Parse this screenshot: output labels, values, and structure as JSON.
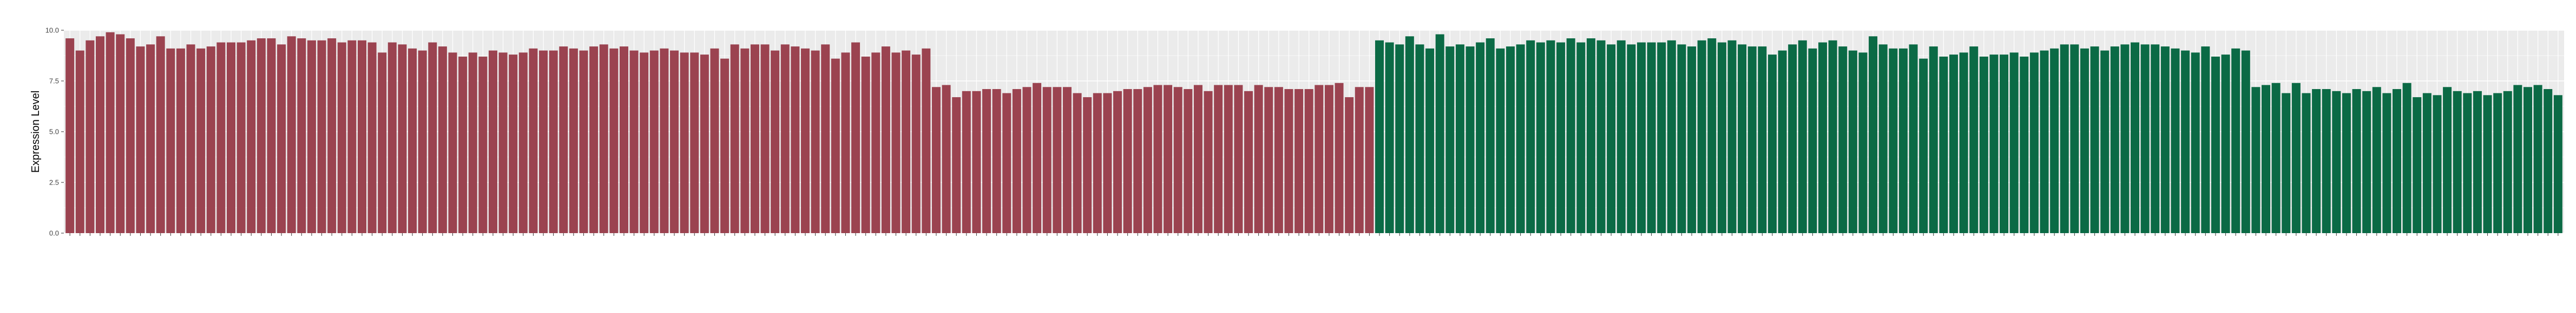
{
  "chart_data": {
    "type": "bar",
    "ylabel": "Expression Level",
    "xlabel": "",
    "ylim": [
      0,
      10
    ],
    "yticks": [
      "0.0",
      "2.5",
      "5.0",
      "7.5",
      "10.0"
    ],
    "grid": true,
    "legend": "none",
    "colors": {
      "group1": "#9b4350",
      "group2": "#0b6a45",
      "panel": "#ebebeb",
      "gridline": "#ffffff"
    },
    "groups": [
      {
        "color_key": "group1",
        "values": [
          9.6,
          9.0,
          9.5,
          9.7,
          9.9,
          9.8,
          9.6,
          9.2,
          9.3,
          9.7,
          9.1,
          9.1,
          9.3,
          9.1,
          9.2,
          9.4,
          9.4,
          9.4,
          9.5,
          9.6,
          9.6,
          9.3,
          9.7,
          9.6,
          9.5,
          9.5,
          9.6,
          9.4,
          9.5,
          9.5,
          9.4,
          8.9,
          9.4,
          9.3,
          9.1,
          9.0,
          9.4,
          9.2,
          8.9,
          8.7,
          8.9,
          8.7,
          9.0,
          8.9,
          8.8,
          8.9,
          9.1,
          9.0,
          9.0,
          9.2,
          9.1,
          9.0,
          9.2,
          9.3,
          9.1,
          9.2,
          9.0,
          8.9,
          9.0,
          9.1,
          9.0,
          8.9,
          8.9,
          8.8,
          9.1,
          8.6,
          9.3,
          9.1,
          9.3,
          9.3,
          9.0,
          9.3,
          9.2,
          9.1,
          9.0,
          9.3,
          8.6,
          8.9,
          9.4,
          8.7,
          8.9,
          9.2,
          8.9,
          9.0,
          8.8,
          9.1,
          7.2,
          7.3,
          6.7,
          7.0,
          7.0,
          7.1,
          7.1,
          6.9,
          7.1,
          7.2,
          7.4,
          7.2,
          7.2,
          7.2,
          6.9,
          6.7,
          6.9,
          6.9,
          7.0,
          7.1,
          7.1,
          7.2,
          7.3,
          7.3,
          7.2,
          7.1,
          7.3,
          7.0,
          7.3,
          7.3,
          7.3,
          7.0,
          7.3,
          7.2,
          7.2,
          7.1,
          7.1,
          7.1,
          7.3,
          7.3,
          7.4,
          6.7,
          7.2,
          7.2
        ]
      },
      {
        "color_key": "group2",
        "values": [
          9.5,
          9.4,
          9.3,
          9.7,
          9.3,
          9.1,
          9.8,
          9.2,
          9.3,
          9.2,
          9.4,
          9.6,
          9.1,
          9.2,
          9.3,
          9.5,
          9.4,
          9.5,
          9.4,
          9.6,
          9.4,
          9.6,
          9.5,
          9.3,
          9.5,
          9.3,
          9.4,
          9.4,
          9.4,
          9.5,
          9.3,
          9.2,
          9.5,
          9.6,
          9.4,
          9.5,
          9.3,
          9.2,
          9.2,
          8.8,
          9.0,
          9.3,
          9.5,
          9.1,
          9.4,
          9.5,
          9.2,
          9.0,
          8.9,
          9.7,
          9.3,
          9.1,
          9.1,
          9.3,
          8.6,
          9.2,
          8.7,
          8.8,
          8.9,
          9.2,
          8.7,
          8.8,
          8.8,
          8.9,
          8.7,
          8.9,
          9.0,
          9.1,
          9.3,
          9.3,
          9.1,
          9.2,
          9.0,
          9.2,
          9.3,
          9.4,
          9.3,
          9.3,
          9.2,
          9.1,
          9.0,
          8.9,
          9.2,
          8.7,
          8.8,
          9.1,
          9.0,
          7.2,
          7.3,
          7.4,
          6.9,
          7.4,
          6.9,
          7.1,
          7.1,
          7.0,
          6.9,
          7.1,
          7.0,
          7.2,
          6.9,
          7.1,
          7.4,
          6.7,
          6.9,
          6.8,
          7.2,
          7.0,
          6.9,
          7.0,
          6.8,
          6.9,
          7.0,
          7.3,
          7.2,
          7.3,
          7.1,
          6.8
        ]
      }
    ]
  }
}
